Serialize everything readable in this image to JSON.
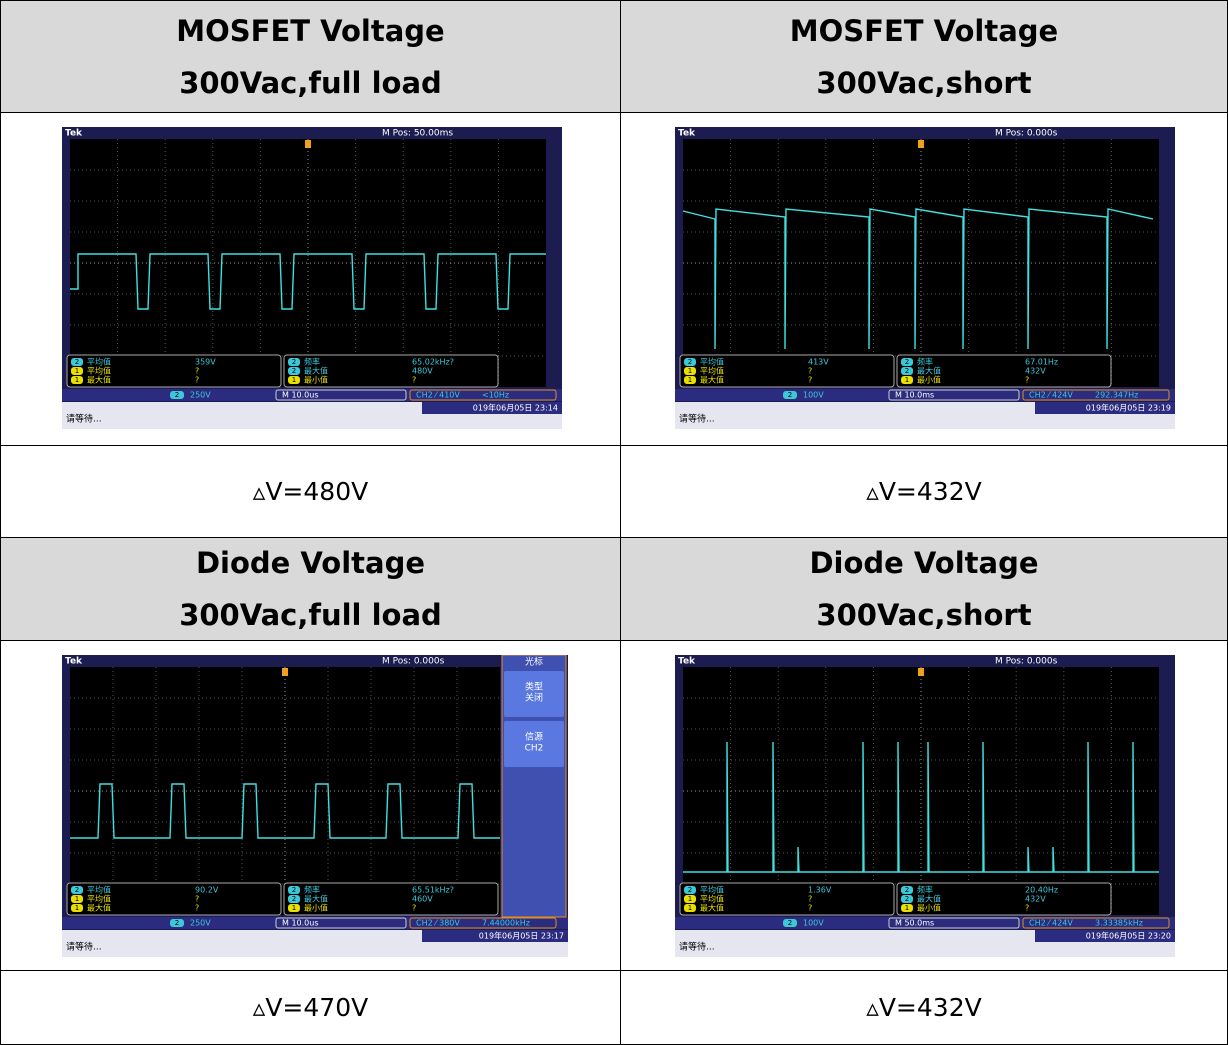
{
  "sections": [
    {
      "panels": [
        {
          "title": "MOSFET Voltage",
          "subtitle": "300Vac,full load",
          "delta": "▵V=480V",
          "scope": {
            "brand": "Tek",
            "pos": "M Pos: 50.00ms",
            "meas": [
              {
                "ch": "2",
                "label": "平均值",
                "value": "359V"
              },
              {
                "ch": "1",
                "label": "平均值",
                "value": "?"
              },
              {
                "ch": "1",
                "label": "最大值",
                "value": "?"
              },
              {
                "ch": "2",
                "label": "频率",
                "value": "65.02kHz?"
              },
              {
                "ch": "2",
                "label": "最大值",
                "value": "480V"
              },
              {
                "ch": "1",
                "label": "最小值",
                "value": "?"
              }
            ],
            "chan": "2",
            "volts": "250V",
            "time": "M 10.0us",
            "trig": "CH2 ⁄ 410V",
            "freq": "<10Hz",
            "status": "请等待...",
            "date": "019年06月05日 23:14"
          }
        },
        {
          "title": "MOSFET Voltage",
          "subtitle": "300Vac,short",
          "delta": "▵V=432V",
          "scope": {
            "brand": "Tek",
            "pos": "M Pos: 0.000s",
            "meas": [
              {
                "ch": "2",
                "label": "平均值",
                "value": "413V"
              },
              {
                "ch": "1",
                "label": "平均值",
                "value": "?"
              },
              {
                "ch": "1",
                "label": "最大值",
                "value": "?"
              },
              {
                "ch": "2",
                "label": "频率",
                "value": "67.01Hz"
              },
              {
                "ch": "2",
                "label": "最大值",
                "value": "432V"
              },
              {
                "ch": "1",
                "label": "最小值",
                "value": "?"
              }
            ],
            "chan": "2",
            "volts": "100V",
            "time": "M 10.0ms",
            "trig": "CH2 ⁄ 424V",
            "freq": "292.347Hz",
            "status": "请等待...",
            "date": "019年06月05日 23:19"
          }
        }
      ]
    },
    {
      "panels": [
        {
          "title": "Diode Voltage",
          "subtitle": "300Vac,full load",
          "delta": "▵V=470V",
          "scope": {
            "brand": "Tek",
            "pos": "M Pos: 0.000s",
            "meas": [
              {
                "ch": "2",
                "label": "平均值",
                "value": "90.2V"
              },
              {
                "ch": "1",
                "label": "平均值",
                "value": "?"
              },
              {
                "ch": "1",
                "label": "最大值",
                "value": "?"
              },
              {
                "ch": "2",
                "label": "频率",
                "value": "65.51kHz?"
              },
              {
                "ch": "2",
                "label": "最大值",
                "value": "460V"
              },
              {
                "ch": "1",
                "label": "最小值",
                "value": "?"
              }
            ],
            "chan": "2",
            "volts": "250V",
            "time": "M 10.0us",
            "trig": "CH2 ⁄ 380V",
            "freq": "7.44000kHz",
            "status": "请等待...",
            "date": "019年06月05日 23:17",
            "menu": {
              "title": "光标",
              "items": [
                [
                  "类型",
                  "关闭"
                ],
                [
                  "信源",
                  "CH2"
                ]
              ]
            }
          }
        },
        {
          "title": "Diode Voltage",
          "subtitle": "300Vac,short",
          "delta": "▵V=432V",
          "scope": {
            "brand": "Tek",
            "pos": "M Pos: 0.000s",
            "meas": [
              {
                "ch": "2",
                "label": "平均值",
                "value": "1.36V"
              },
              {
                "ch": "1",
                "label": "平均值",
                "value": "?"
              },
              {
                "ch": "1",
                "label": "最大值",
                "value": "?"
              },
              {
                "ch": "2",
                "label": "频率",
                "value": "20.40Hz"
              },
              {
                "ch": "2",
                "label": "最大值",
                "value": "432V"
              },
              {
                "ch": "1",
                "label": "最小值",
                "value": "?"
              }
            ],
            "chan": "2",
            "volts": "100V",
            "time": "M 50.0ms",
            "trig": "CH2 ⁄ 424V",
            "freq": "3.33385kHz",
            "status": "请等待...",
            "date": "019年06月05日 23:20"
          }
        }
      ]
    }
  ]
}
